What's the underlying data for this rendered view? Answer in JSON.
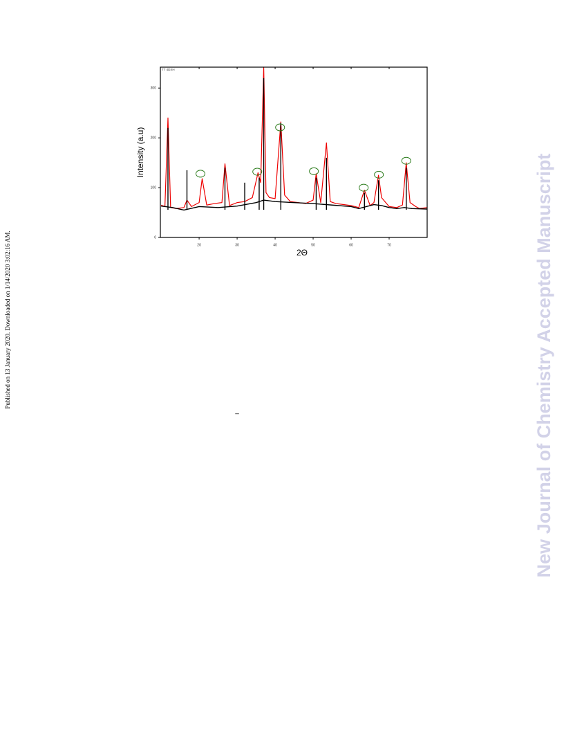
{
  "side_note": "Published on 13 January 2020. Downloaded on 1/14/2020 3:02:16 AM.",
  "watermark": "New Journal of Chemistry Accepted Manuscript",
  "dash": "–",
  "chart_data": {
    "type": "line",
    "annotation": "TT 4DXH",
    "xlabel": "2Θ",
    "ylabel": "Intensity (a.u)",
    "xlim": [
      9.8,
      80
    ],
    "ylim": [
      0,
      342
    ],
    "xticks": [
      20,
      30,
      40,
      50,
      60,
      70
    ],
    "yticks": [
      0,
      100,
      200,
      300
    ],
    "series": [
      {
        "style": "line",
        "color": "#ee0000",
        "width": 1.2,
        "x": [
          10,
          11,
          11.8,
          12.5,
          14,
          16,
          16.8,
          18,
          20,
          20.8,
          22,
          24,
          26,
          26.8,
          28,
          30,
          32,
          34,
          35.5,
          36.2,
          37,
          37.6,
          38.5,
          40,
          41.5,
          42.5,
          44,
          46,
          48,
          50,
          50.8,
          52,
          53.5,
          54.5,
          56,
          58,
          60,
          62,
          63.5,
          65,
          66,
          67.2,
          68,
          70,
          72,
          73.5,
          74.5,
          75.5,
          77,
          78,
          80
        ],
        "values": [
          65,
          62,
          240,
          60,
          58,
          60,
          75,
          62,
          70,
          118,
          65,
          68,
          70,
          148,
          64,
          70,
          72,
          80,
          130,
          110,
          342,
          90,
          80,
          78,
          232,
          85,
          72,
          70,
          68,
          75,
          128,
          70,
          190,
          72,
          68,
          66,
          64,
          60,
          95,
          64,
          70,
          125,
          80,
          62,
          60,
          65,
          150,
          70,
          62,
          58,
          60
        ]
      },
      {
        "style": "line",
        "color": "#000000",
        "width": 1.4,
        "x": [
          10,
          13,
          16,
          20,
          25,
          30,
          35,
          37,
          40,
          45,
          50,
          55,
          60,
          62,
          64,
          66,
          68,
          70,
          72,
          74,
          76,
          80
        ],
        "values": [
          63,
          60,
          55,
          62,
          60,
          63,
          70,
          75,
          72,
          70,
          68,
          65,
          62,
          58,
          62,
          66,
          64,
          60,
          58,
          60,
          58,
          57
        ]
      },
      {
        "style": "stick",
        "color": "#000000",
        "width": 1.4,
        "x": [
          11.8,
          16.8,
          26.8,
          32,
          35.8,
          37,
          41.5,
          50.8,
          53.5,
          63.5,
          67.2,
          74.5
        ],
        "values": [
          220,
          135,
          140,
          110,
          120,
          320,
          230,
          120,
          160,
          90,
          115,
          140
        ]
      }
    ],
    "circled_peaks": {
      "color": "#2e7d1e",
      "x": [
        20.35,
        35.3,
        41.3,
        50.2,
        63.3,
        67.3,
        74.5
      ],
      "values": [
        128,
        132,
        221,
        133,
        100,
        126,
        154
      ]
    }
  }
}
